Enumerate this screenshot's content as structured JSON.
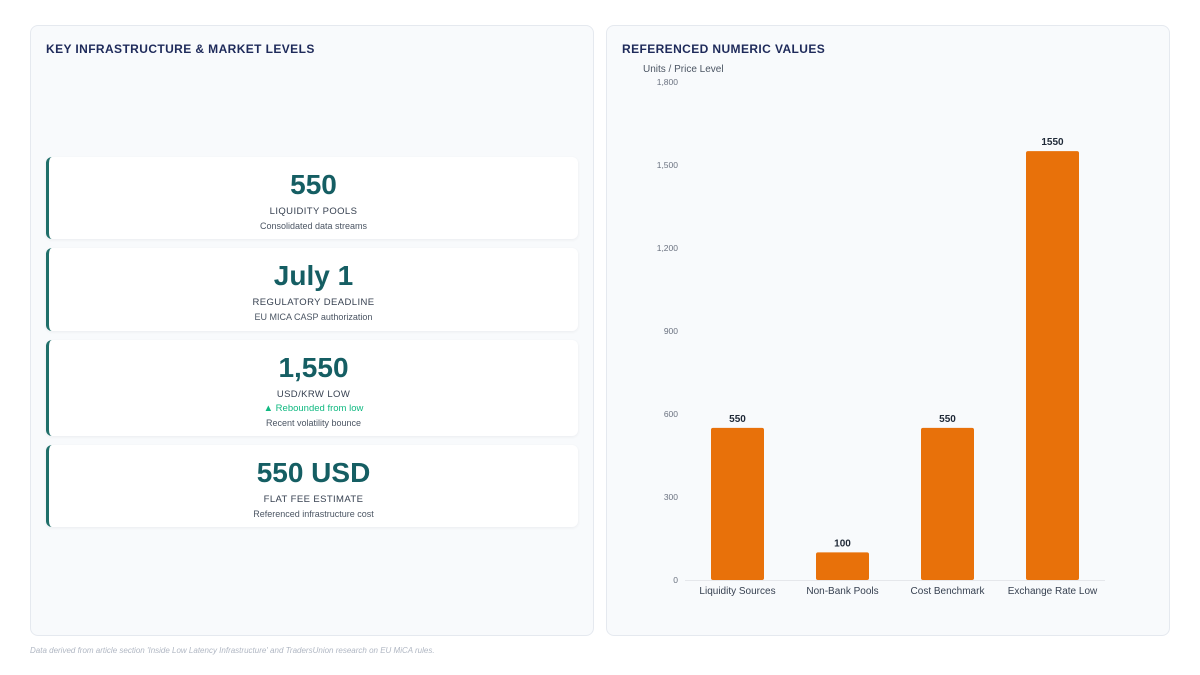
{
  "left_panel": {
    "title": "KEY INFRASTRUCTURE & MARKET LEVELS",
    "accent_color": "#1f6f6a",
    "cards": [
      {
        "value": "550",
        "label": "LIQUIDITY POOLS",
        "sub": "Consolidated data streams"
      },
      {
        "value": "July 1",
        "label": "REGULATORY DEADLINE",
        "sub": "EU MICA CASP authorization"
      },
      {
        "value": "1,550",
        "label": "USD/KRW LOW",
        "change": "▲ Rebounded from low",
        "sub": "Recent volatility bounce"
      },
      {
        "value": "550 USD",
        "label": "FLAT FEE ESTIMATE",
        "sub": "Referenced infrastructure cost"
      }
    ]
  },
  "right_panel": {
    "title": "REFERENCED NUMERIC VALUES"
  },
  "chart_data": {
    "type": "bar",
    "categories": [
      "Liquidity Sources",
      "Non-Bank Pools",
      "Cost Benchmark",
      "Exchange Rate Low"
    ],
    "values": [
      550,
      100,
      550,
      1550
    ],
    "data_labels": [
      "550",
      "100",
      "550",
      "1550"
    ],
    "ylabel": "Units / Price Level",
    "ylim": [
      0,
      1800
    ],
    "yticks": [
      0,
      300,
      600,
      900,
      1200,
      1500,
      1800
    ],
    "ytick_labels": [
      "0",
      "300",
      "600",
      "900",
      "1,200",
      "1,500",
      "1,800"
    ],
    "bar_color": "#e8710a",
    "grid": false,
    "legend": "none"
  },
  "footnote": "Data derived from article section 'Inside Low Latency Infrastructure' and TradersUnion research on EU MiCA rules."
}
